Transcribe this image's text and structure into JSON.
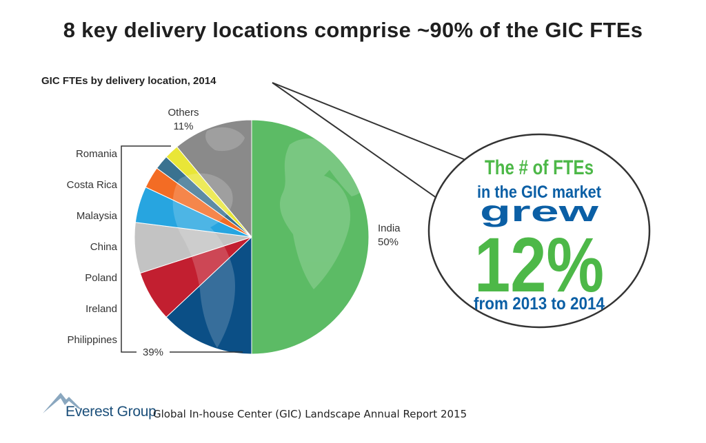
{
  "headline": "8 key delivery locations comprise ~90% of the GIC FTEs",
  "chart_data": {
    "type": "pie",
    "title": "GIC FTEs by delivery location, 2014",
    "start": "12 o'clock",
    "direction": "clockwise",
    "slices": [
      {
        "name": "India",
        "value": 50,
        "label": "India",
        "pct_label": "50%",
        "color": "#5cbb65"
      },
      {
        "name": "Philippines",
        "value": 13,
        "label": "Philippines",
        "color": "#0b4f86"
      },
      {
        "name": "Ireland",
        "value": 7,
        "label": "Ireland",
        "color": "#c21f30"
      },
      {
        "name": "Poland",
        "value": 7,
        "label": "Poland",
        "color": "#c3c3c3"
      },
      {
        "name": "China",
        "value": 5,
        "label": "China",
        "color": "#27a5e0"
      },
      {
        "name": "Malaysia",
        "value": 3,
        "label": "Malaysia",
        "color": "#f36c24"
      },
      {
        "name": "Costa Rica",
        "value": 2,
        "label": "Costa Rica",
        "color": "#3a7290"
      },
      {
        "name": "Romania",
        "value": 2,
        "label": "Romania",
        "color": "#e9e637"
      },
      {
        "name": "Others",
        "value": 11,
        "label": "Others",
        "pct_label": "11%",
        "color": "#8a8a8a"
      }
    ],
    "bracket_label": "39%",
    "bracket_groups": [
      "Romania",
      "Costa Rica",
      "Malaysia",
      "China",
      "Poland",
      "Ireland",
      "Philippines"
    ]
  },
  "callout": {
    "line1": "The # of FTEs",
    "line2": "in the GIC market",
    "line3": "grew",
    "line4": "12%",
    "line5": "from 2013 to 2014",
    "green": "#4db848",
    "blue": "#0b5fa5"
  },
  "footer": {
    "brand": "Everest Group",
    "report": "Global In-house Center (GIC) Landscape Annual Report 2015"
  }
}
